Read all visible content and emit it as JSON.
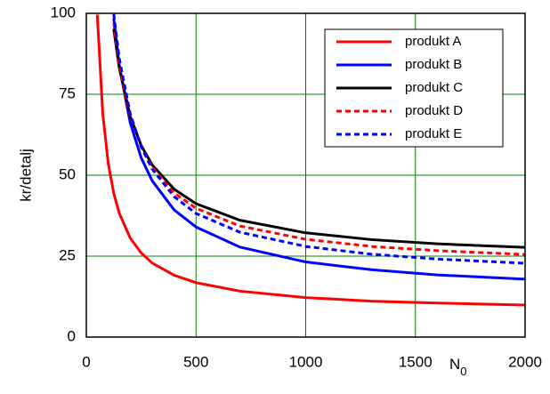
{
  "chart_data": {
    "type": "line",
    "y_label": "kr/detalj",
    "x_label": "N",
    "x_label_sub": "0",
    "x": [
      50,
      75,
      100,
      125,
      150,
      200,
      250,
      300,
      400,
      500,
      700,
      1000,
      1300,
      1600,
      2000
    ],
    "series": [
      {
        "name": "produkt A",
        "color": "#ff0000",
        "dash": false,
        "values": [
          99.6,
          68.9,
          53.6,
          44.4,
          38.3,
          30.6,
          26.0,
          22.9,
          19.1,
          16.8,
          14.2,
          12.2,
          11.1,
          10.5,
          9.9
        ]
      },
      {
        "name": "produkt B",
        "color": "#0000ff",
        "dash": false,
        "values": [
          null,
          null,
          null,
          98.4,
          84.1,
          66.2,
          55.4,
          48.3,
          39.3,
          34.0,
          27.8,
          23.2,
          20.8,
          19.2,
          17.9
        ]
      },
      {
        "name": "produkt C",
        "color": "#000000",
        "dash": false,
        "values": [
          null,
          null,
          null,
          95.2,
          83.2,
          68.2,
          59.2,
          53.2,
          45.7,
          41.2,
          36.1,
          32.2,
          30.1,
          28.8,
          27.7
        ]
      },
      {
        "name": "produkt D",
        "color": "#ff0000",
        "dash": true,
        "values": [
          null,
          null,
          null,
          97.0,
          84.3,
          68.4,
          58.8,
          52.5,
          44.5,
          39.8,
          34.3,
          30.2,
          28.0,
          26.7,
          25.5
        ]
      },
      {
        "name": "produkt E",
        "color": "#0000ff",
        "dash": true,
        "values": [
          null,
          null,
          null,
          99.8,
          86.1,
          69.0,
          58.8,
          51.9,
          43.4,
          38.2,
          32.4,
          28.0,
          25.6,
          24.1,
          22.8
        ]
      }
    ],
    "xlim": [
      0,
      2000
    ],
    "xticks": [
      0,
      500,
      1000,
      1500,
      2000
    ],
    "ylim": [
      0,
      100
    ],
    "yticks": [
      0,
      25,
      50,
      75,
      100
    ],
    "grid": true,
    "grid_color": "#008000",
    "legend": "upper right"
  }
}
